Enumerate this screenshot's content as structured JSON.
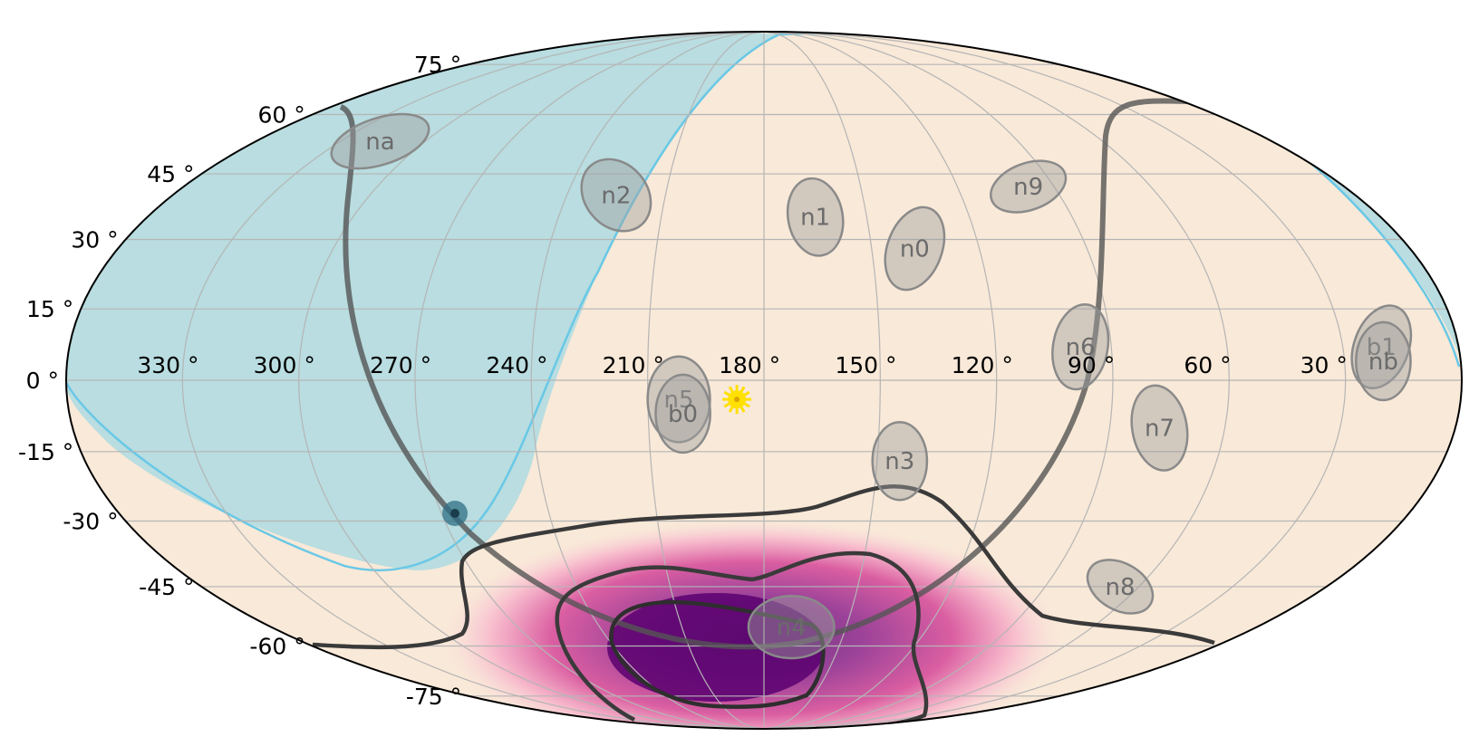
{
  "chart_data": {
    "type": "sky-map",
    "projection": "mollweide",
    "lon_ticks": [
      330,
      300,
      270,
      240,
      210,
      180,
      150,
      120,
      90,
      60,
      30
    ],
    "lat_ticks": [
      75,
      60,
      45,
      30,
      15,
      0,
      -15,
      -30,
      -45,
      -60,
      -75
    ],
    "lon_tick_labels": [
      "330 °",
      "300 °",
      "270 °",
      "240 °",
      "210 °",
      "180 °",
      "150 °",
      "120 °",
      "90 °",
      "60 °",
      "30 °"
    ],
    "lat_tick_labels": [
      "75 °",
      "60 °",
      "45 °",
      "30 °",
      "15 °",
      "0 °",
      "-15 °",
      "-30 °",
      "-45 °",
      "-60 °",
      "-75 °"
    ],
    "grid": true,
    "colors": {
      "sky": "#f9e9d8",
      "earth_occultation": "#b9dde0",
      "earth_limb": "#69c8e6",
      "detector": "#a0a0a0",
      "contour": "#333333",
      "probability_peak": "#4b0069",
      "probability_low": "#f7a8c8",
      "sun": "#ffe000",
      "galactic_plane": "#555555"
    },
    "detectors": [
      {
        "label": "na",
        "ra": 316,
        "dec": 53,
        "rx": 13,
        "ry": 6,
        "rot": 18
      },
      {
        "label": "n2",
        "ra": 225,
        "dec": 40,
        "rx": 8,
        "ry": 10,
        "rot": 40
      },
      {
        "label": "n1",
        "ra": 165,
        "dec": 35,
        "rx": 7,
        "ry": 10,
        "rot": 10
      },
      {
        "label": "n0",
        "ra": 138,
        "dec": 28,
        "rx": 7,
        "ry": 11,
        "rot": -20
      },
      {
        "label": "n9",
        "ra": 98,
        "dec": 42,
        "rx": 10,
        "ry": 6,
        "rot": 20
      },
      {
        "label": "n6",
        "ra": 98,
        "dec": 7,
        "rx": 7,
        "ry": 11,
        "rot": -10
      },
      {
        "label": "n7",
        "ra": 77,
        "dec": -10,
        "rx": 7,
        "ry": 11,
        "rot": 10
      },
      {
        "label": "n3",
        "ra": 144,
        "dec": -17,
        "rx": 7,
        "ry": 10,
        "rot": 0
      },
      {
        "label": "n8",
        "ra": 66,
        "dec": -45,
        "rx": 9,
        "ry": 6,
        "rot": -30
      },
      {
        "label": "b1",
        "ra": 20,
        "dec": 7,
        "rx": 7,
        "ry": 11,
        "rot": -20
      },
      {
        "label": "nb",
        "ra": 20,
        "dec": 4,
        "rx": 7,
        "ry": 10,
        "rot": 0
      },
      {
        "label": "n5",
        "ra": 202,
        "dec": -4,
        "rx": 8,
        "ry": 11,
        "rot": 0
      },
      {
        "label": "b0",
        "ra": 201,
        "dec": -7,
        "rx": 7,
        "ry": 10,
        "rot": 0
      },
      {
        "label": "n4",
        "ra": 170,
        "dec": -55,
        "rx": 11,
        "ry": 8,
        "rot": 0
      }
    ],
    "sun": {
      "ra": 187,
      "dec": -4
    },
    "source_marker": {
      "ra": 265,
      "dec": -28
    }
  }
}
